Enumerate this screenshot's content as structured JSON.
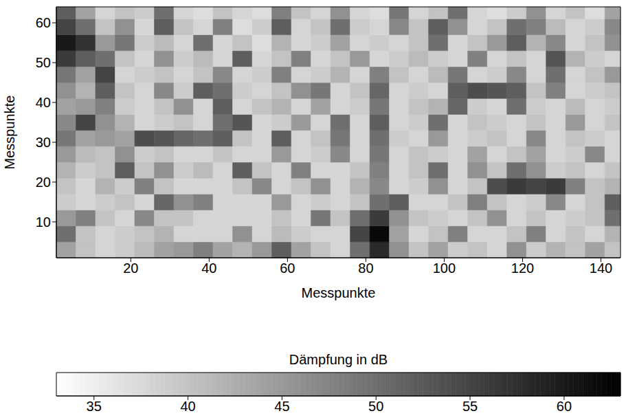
{
  "chart_data": {
    "type": "heatmap",
    "xlabel": "Messpunkte",
    "ylabel": "Messpunkte",
    "xlim": [
      1,
      145
    ],
    "ylim": [
      1,
      64
    ],
    "xticks": [
      20,
      40,
      60,
      80,
      100,
      120,
      140
    ],
    "yticks": [
      10,
      20,
      30,
      40,
      50,
      60
    ],
    "x_edges": [
      1,
      6,
      11,
      16,
      21,
      26,
      31,
      36,
      41,
      46,
      51,
      56,
      61,
      66,
      71,
      76,
      81,
      86,
      91,
      96,
      101,
      106,
      111,
      116,
      121,
      126,
      131,
      136,
      141,
      145
    ],
    "y_edges": [
      1,
      5,
      9,
      13,
      17,
      21,
      25,
      29,
      33,
      37,
      41,
      45,
      49,
      53,
      57,
      61,
      64
    ],
    "cells": [
      [
        44,
        40,
        38,
        39,
        41,
        44,
        45,
        48,
        44,
        42,
        45,
        52,
        44,
        40,
        38,
        50,
        58,
        46,
        40,
        44,
        39,
        40,
        38,
        46,
        39,
        42,
        40,
        44,
        40
      ],
      [
        50,
        40,
        38,
        39,
        40,
        42,
        38,
        38,
        38,
        46,
        38,
        41,
        39,
        38,
        38,
        55,
        62,
        44,
        38,
        40,
        48,
        38,
        38,
        40,
        48,
        38,
        40,
        38,
        42
      ],
      [
        45,
        48,
        40,
        38,
        47,
        40,
        40,
        38,
        38,
        38,
        38,
        40,
        38,
        49,
        40,
        50,
        56,
        46,
        40,
        39,
        38,
        40,
        46,
        38,
        40,
        38,
        39,
        40,
        50
      ],
      [
        39,
        38,
        39,
        40,
        38,
        51,
        46,
        48,
        38,
        38,
        38,
        45,
        38,
        39,
        38,
        40,
        50,
        52,
        38,
        38,
        40,
        48,
        40,
        38,
        39,
        47,
        38,
        40,
        52
      ],
      [
        40,
        38,
        42,
        39,
        48,
        40,
        38,
        38,
        38,
        40,
        47,
        38,
        40,
        46,
        38,
        42,
        47,
        38,
        39,
        46,
        38,
        40,
        54,
        56,
        55,
        56,
        48,
        40,
        42
      ],
      [
        42,
        39,
        40,
        52,
        40,
        46,
        39,
        41,
        38,
        52,
        40,
        38,
        48,
        38,
        38,
        40,
        48,
        38,
        40,
        50,
        38,
        46,
        40,
        50,
        46,
        39,
        40,
        38,
        40
      ],
      [
        45,
        41,
        40,
        46,
        39,
        40,
        38,
        38,
        40,
        38,
        38,
        45,
        38,
        39,
        47,
        38,
        49,
        38,
        40,
        39,
        38,
        44,
        38,
        40,
        44,
        38,
        39,
        47,
        38
      ],
      [
        49,
        44,
        45,
        44,
        54,
        53,
        51,
        50,
        52,
        40,
        38,
        52,
        38,
        40,
        49,
        38,
        50,
        39,
        38,
        45,
        38,
        39,
        40,
        38,
        47,
        38,
        40,
        39,
        38
      ],
      [
        47,
        55,
        46,
        42,
        38,
        39,
        40,
        38,
        50,
        53,
        38,
        39,
        45,
        38,
        50,
        38,
        52,
        38,
        39,
        50,
        38,
        40,
        39,
        38,
        40,
        38,
        45,
        38,
        40
      ],
      [
        44,
        45,
        48,
        39,
        38,
        40,
        46,
        38,
        52,
        38,
        40,
        42,
        38,
        44,
        38,
        39,
        49,
        38,
        40,
        42,
        51,
        39,
        38,
        50,
        39,
        38,
        41,
        38,
        39
      ],
      [
        46,
        42,
        52,
        40,
        38,
        47,
        39,
        52,
        50,
        39,
        38,
        40,
        46,
        49,
        38,
        40,
        51,
        38,
        39,
        38,
        52,
        54,
        53,
        52,
        40,
        48,
        38,
        39,
        40
      ],
      [
        49,
        44,
        55,
        38,
        39,
        40,
        38,
        40,
        47,
        38,
        39,
        48,
        38,
        39,
        42,
        38,
        48,
        40,
        38,
        41,
        49,
        38,
        39,
        47,
        38,
        50,
        38,
        40,
        45
      ],
      [
        56,
        52,
        50,
        40,
        38,
        46,
        39,
        41,
        38,
        52,
        38,
        40,
        48,
        38,
        40,
        45,
        38,
        39,
        41,
        39,
        38,
        48,
        38,
        40,
        38,
        53,
        42,
        39,
        38
      ],
      [
        60,
        57,
        45,
        49,
        39,
        41,
        38,
        50,
        38,
        40,
        37,
        42,
        38,
        39,
        44,
        38,
        39,
        38,
        40,
        50,
        38,
        40,
        45,
        52,
        42,
        47,
        38,
        40,
        46
      ],
      [
        55,
        50,
        40,
        46,
        38,
        52,
        40,
        38,
        48,
        37,
        39,
        52,
        38,
        40,
        50,
        39,
        38,
        47,
        40,
        52,
        46,
        38,
        40,
        50,
        48,
        41,
        38,
        39,
        47
      ],
      [
        52,
        44,
        38,
        40,
        39,
        50,
        38,
        37,
        40,
        38,
        37,
        48,
        40,
        38,
        46,
        38,
        37,
        49,
        38,
        40,
        50,
        38,
        37,
        39,
        46,
        38,
        40,
        37,
        44
      ]
    ],
    "colorbar": {
      "label": "Dämpfung in dB",
      "range": [
        33,
        63
      ],
      "ticks": [
        35,
        40,
        45,
        50,
        55,
        60
      ]
    }
  }
}
